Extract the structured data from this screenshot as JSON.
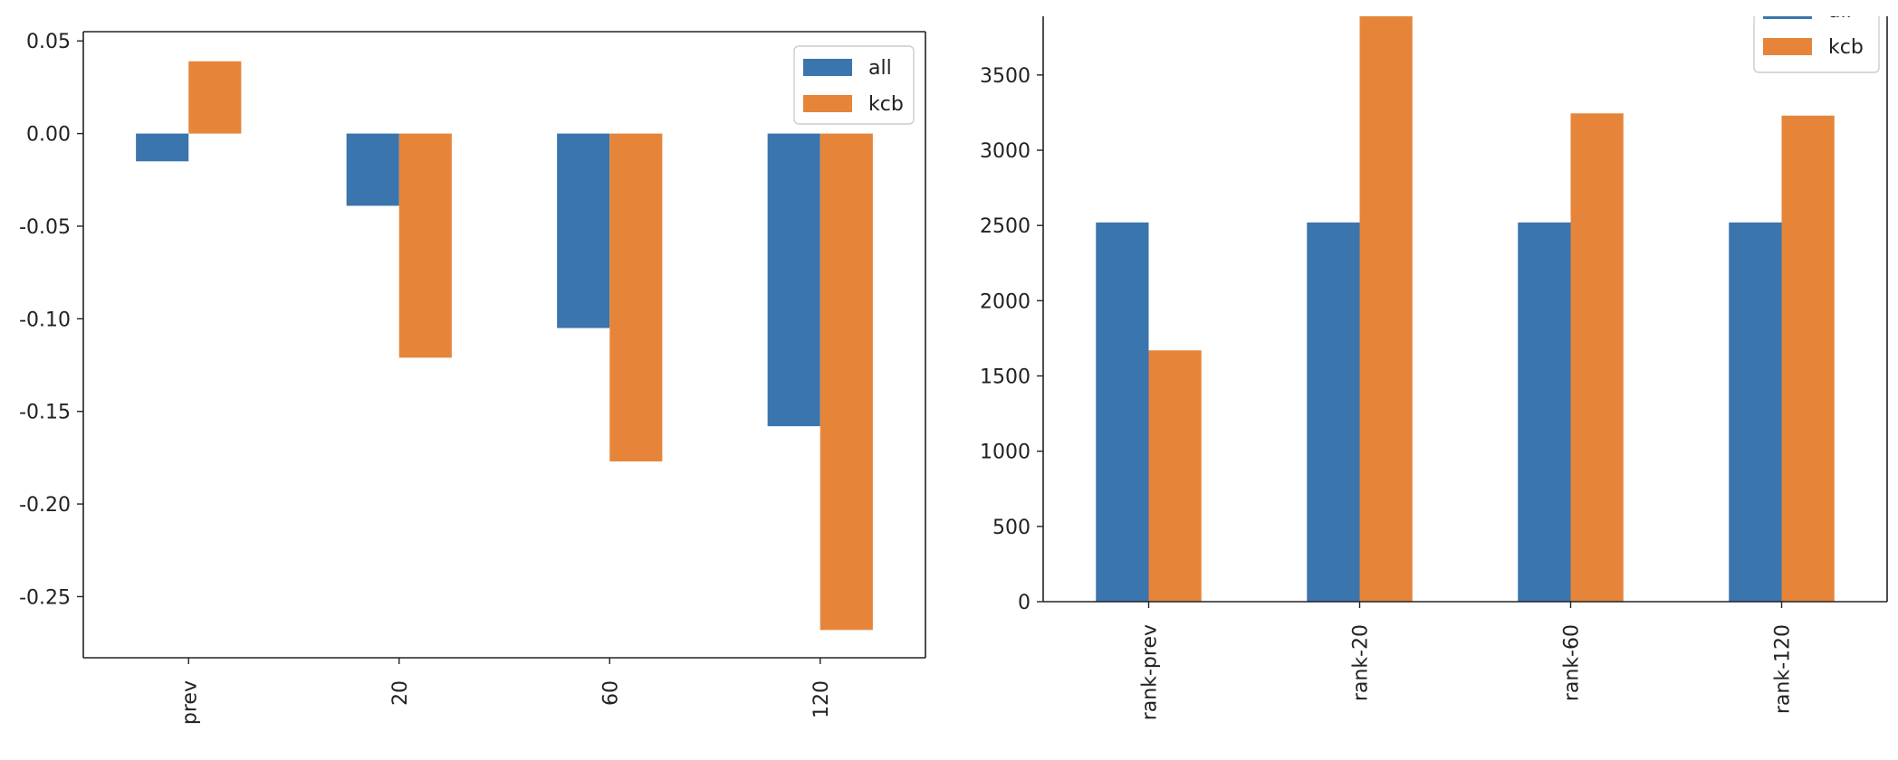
{
  "chart_data": [
    {
      "type": "bar",
      "title": "",
      "xlabel": "",
      "ylabel": "",
      "categories": [
        "prev",
        "20",
        "60",
        "120"
      ],
      "series": [
        {
          "name": "all",
          "color": "#3a75ae",
          "values": [
            -0.015,
            -0.039,
            -0.105,
            -0.158
          ]
        },
        {
          "name": "kcb",
          "color": "#e6853a",
          "values": [
            0.039,
            -0.121,
            -0.177,
            -0.268
          ]
        }
      ],
      "ylim": [
        -0.283,
        0.055
      ],
      "yticks": [
        0.05,
        0.0,
        -0.05,
        -0.1,
        -0.15,
        -0.2,
        -0.25
      ],
      "ytick_labels": [
        "0.05",
        "0.00",
        "-0.05",
        "-0.10",
        "-0.15",
        "-0.20",
        "-0.25"
      ],
      "legend_position": "top-right",
      "grid": false
    },
    {
      "type": "bar",
      "title": "",
      "xlabel": "",
      "ylabel": "",
      "categories": [
        "rank-prev",
        "rank-20",
        "rank-60",
        "rank-120"
      ],
      "series": [
        {
          "name": "all",
          "color": "#3a75ae",
          "values": [
            2520,
            2520,
            2520,
            2520
          ]
        },
        {
          "name": "kcb",
          "color": "#e6853a",
          "values": [
            1670,
            3890,
            3245,
            3230
          ]
        }
      ],
      "ylim": [
        0,
        3890
      ],
      "yticks": [
        0,
        500,
        1000,
        1500,
        2000,
        2500,
        3000,
        3500
      ],
      "ytick_labels": [
        "0",
        "500",
        "1000",
        "1500",
        "2000",
        "2500",
        "3000",
        "3500"
      ],
      "legend_position": "top-right (clipped)",
      "grid": false
    }
  ]
}
